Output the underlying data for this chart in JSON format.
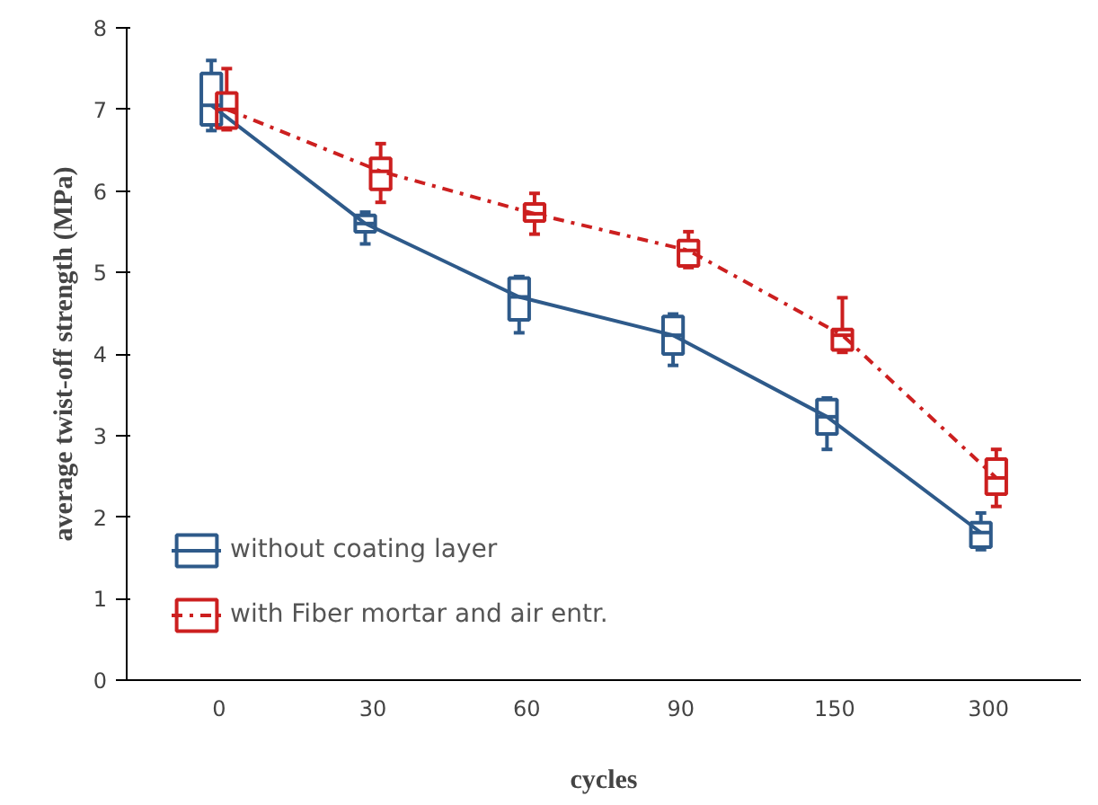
{
  "chart_data": {
    "type": "box",
    "xlabel": "cycles",
    "ylabel": "average twist-off strength (MPa)",
    "categories": [
      "0",
      "30",
      "60",
      "90",
      "150",
      "300"
    ],
    "ylim": [
      0,
      8
    ],
    "yticks": [
      0,
      1,
      2,
      3,
      4,
      5,
      6,
      7,
      8
    ],
    "grid": false,
    "legend": "bottom left",
    "series": [
      {
        "name": "without coating layer",
        "color": "#2e5a8a",
        "boxes": [
          {
            "low": 6.74,
            "q1": 6.81,
            "median": 7.05,
            "q3": 7.44,
            "high": 7.6
          },
          {
            "low": 5.35,
            "q1": 5.5,
            "median": 5.6,
            "q3": 5.7,
            "high": 5.74
          },
          {
            "low": 4.26,
            "q1": 4.42,
            "median": 4.7,
            "q3": 4.93,
            "high": 4.95
          },
          {
            "low": 3.86,
            "q1": 4.0,
            "median": 4.23,
            "q3": 4.46,
            "high": 4.49
          },
          {
            "low": 2.83,
            "q1": 3.02,
            "median": 3.23,
            "q3": 3.44,
            "high": 3.46
          },
          {
            "low": 1.6,
            "q1": 1.63,
            "median": 1.81,
            "q3": 1.93,
            "high": 2.05
          }
        ]
      },
      {
        "type": "line",
        "color": "#2e5a8a",
        "line_style": "solid",
        "values": [
          7.05,
          5.6,
          4.7,
          4.23,
          3.23,
          1.81
        ]
      },
      {
        "name": "with Fiber mortar and air entr.",
        "color": "#cc1f1f",
        "boxes": [
          {
            "low": 6.75,
            "q1": 6.77,
            "median": 7.0,
            "q3": 7.2,
            "high": 7.5
          },
          {
            "low": 5.86,
            "q1": 6.02,
            "median": 6.24,
            "q3": 6.4,
            "high": 6.58
          },
          {
            "low": 5.47,
            "q1": 5.63,
            "median": 5.72,
            "q3": 5.84,
            "high": 5.97
          },
          {
            "low": 5.06,
            "q1": 5.08,
            "median": 5.27,
            "q3": 5.39,
            "high": 5.5
          },
          {
            "low": 4.02,
            "q1": 4.05,
            "median": 4.23,
            "q3": 4.3,
            "high": 4.69
          },
          {
            "low": 2.13,
            "q1": 2.28,
            "median": 2.48,
            "q3": 2.71,
            "high": 2.83
          }
        ]
      },
      {
        "type": "line",
        "color": "#cc1f1f",
        "line_style": "dashdot",
        "values": [
          7.0,
          6.24,
          5.72,
          5.27,
          4.23,
          2.48
        ]
      }
    ]
  }
}
